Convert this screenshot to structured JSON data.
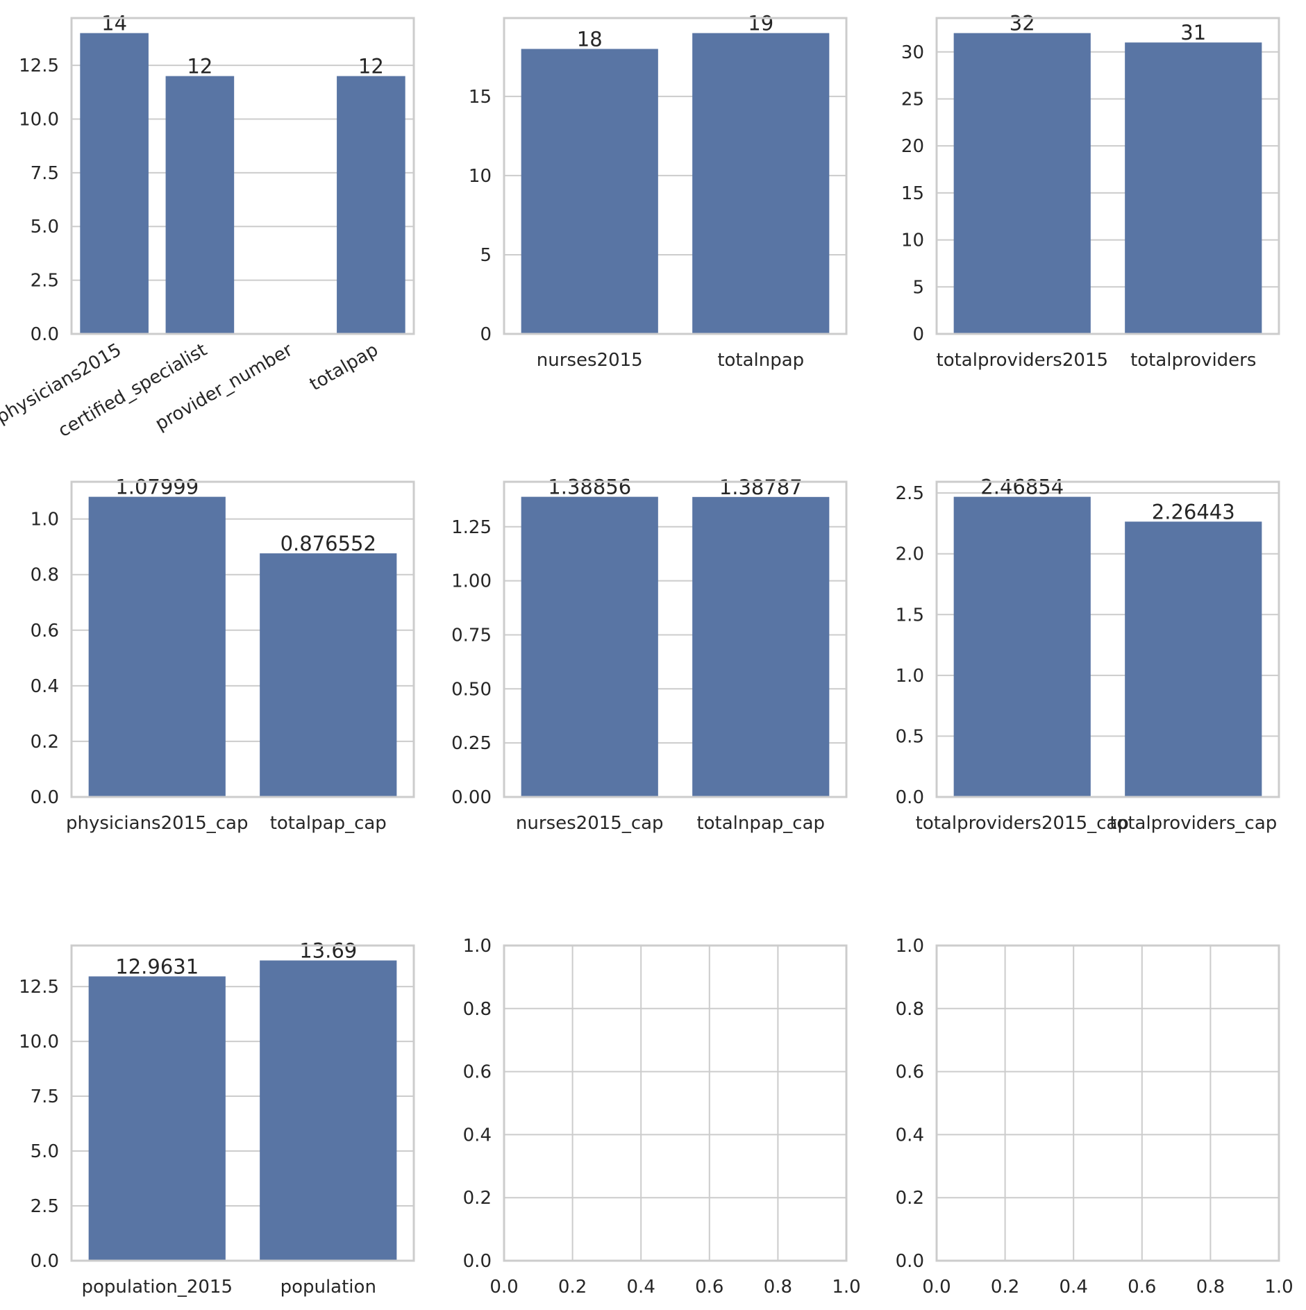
{
  "style": {
    "bar_color": "#5975a4",
    "grid_color": "#cccccc",
    "frame_color": "#cccccc",
    "text_color": "#262626",
    "background": "#ffffff"
  },
  "chart_data": [
    {
      "type": "bar",
      "categories": [
        "physicians2015",
        "certified_specialist",
        "provider_number",
        "totalpap"
      ],
      "values": [
        14,
        12,
        null,
        12
      ],
      "data_labels": [
        "14",
        "12",
        "",
        "12"
      ],
      "yticks": [
        "0.0",
        "2.5",
        "5.0",
        "7.5",
        "10.0",
        "12.5"
      ],
      "ylim": [
        0,
        14.7
      ],
      "xtick_rotation": -30,
      "grid": "y"
    },
    {
      "type": "bar",
      "categories": [
        "nurses2015",
        "totalnpap"
      ],
      "values": [
        18,
        19
      ],
      "data_labels": [
        "18",
        "19"
      ],
      "yticks": [
        "0",
        "5",
        "10",
        "15"
      ],
      "ylim": [
        0,
        19.95
      ],
      "grid": "y"
    },
    {
      "type": "bar",
      "categories": [
        "totalproviders2015",
        "totalproviders"
      ],
      "values": [
        32,
        31
      ],
      "data_labels": [
        "32",
        "31"
      ],
      "yticks": [
        "0",
        "5",
        "10",
        "15",
        "20",
        "25",
        "30"
      ],
      "ylim": [
        0,
        33.6
      ],
      "grid": "y"
    },
    {
      "type": "bar",
      "categories": [
        "physicians2015_cap",
        "totalpap_cap"
      ],
      "values": [
        1.07999,
        0.876552
      ],
      "data_labels": [
        "1.07999",
        "0.876552"
      ],
      "yticks": [
        "0.0",
        "0.2",
        "0.4",
        "0.6",
        "0.8",
        "1.0"
      ],
      "ylim": [
        0,
        1.134
      ],
      "grid": "y"
    },
    {
      "type": "bar",
      "categories": [
        "nurses2015_cap",
        "totalnpap_cap"
      ],
      "values": [
        1.38856,
        1.38787
      ],
      "data_labels": [
        "1.38856",
        "1.38787"
      ],
      "yticks": [
        "0.00",
        "0.25",
        "0.50",
        "0.75",
        "1.00",
        "1.25"
      ],
      "ylim": [
        0,
        1.458
      ],
      "grid": "y"
    },
    {
      "type": "bar",
      "categories": [
        "totalproviders2015_cap",
        "totalproviders_cap"
      ],
      "values": [
        2.46854,
        2.26443
      ],
      "data_labels": [
        "2.46854",
        "2.26443"
      ],
      "yticks": [
        "0.0",
        "0.5",
        "1.0",
        "1.5",
        "2.0",
        "2.5"
      ],
      "ylim": [
        0,
        2.592
      ],
      "grid": "y"
    },
    {
      "type": "bar",
      "categories": [
        "population_2015",
        "population"
      ],
      "values": [
        12.9631,
        13.69
      ],
      "data_labels": [
        "12.9631",
        "13.69"
      ],
      "yticks": [
        "0.0",
        "2.5",
        "5.0",
        "7.5",
        "10.0",
        "12.5"
      ],
      "ylim": [
        0,
        14.37
      ],
      "grid": "y"
    },
    {
      "type": "empty",
      "xticks": [
        "0.0",
        "0.2",
        "0.4",
        "0.6",
        "0.8",
        "1.0"
      ],
      "yticks": [
        "0.0",
        "0.2",
        "0.4",
        "0.6",
        "0.8",
        "1.0"
      ],
      "xlim": [
        0,
        1
      ],
      "ylim": [
        0,
        1
      ],
      "grid": "both"
    },
    {
      "type": "empty",
      "xticks": [
        "0.0",
        "0.2",
        "0.4",
        "0.6",
        "0.8",
        "1.0"
      ],
      "yticks": [
        "0.0",
        "0.2",
        "0.4",
        "0.6",
        "0.8",
        "1.0"
      ],
      "xlim": [
        0,
        1
      ],
      "ylim": [
        0,
        1
      ],
      "grid": "both"
    }
  ]
}
